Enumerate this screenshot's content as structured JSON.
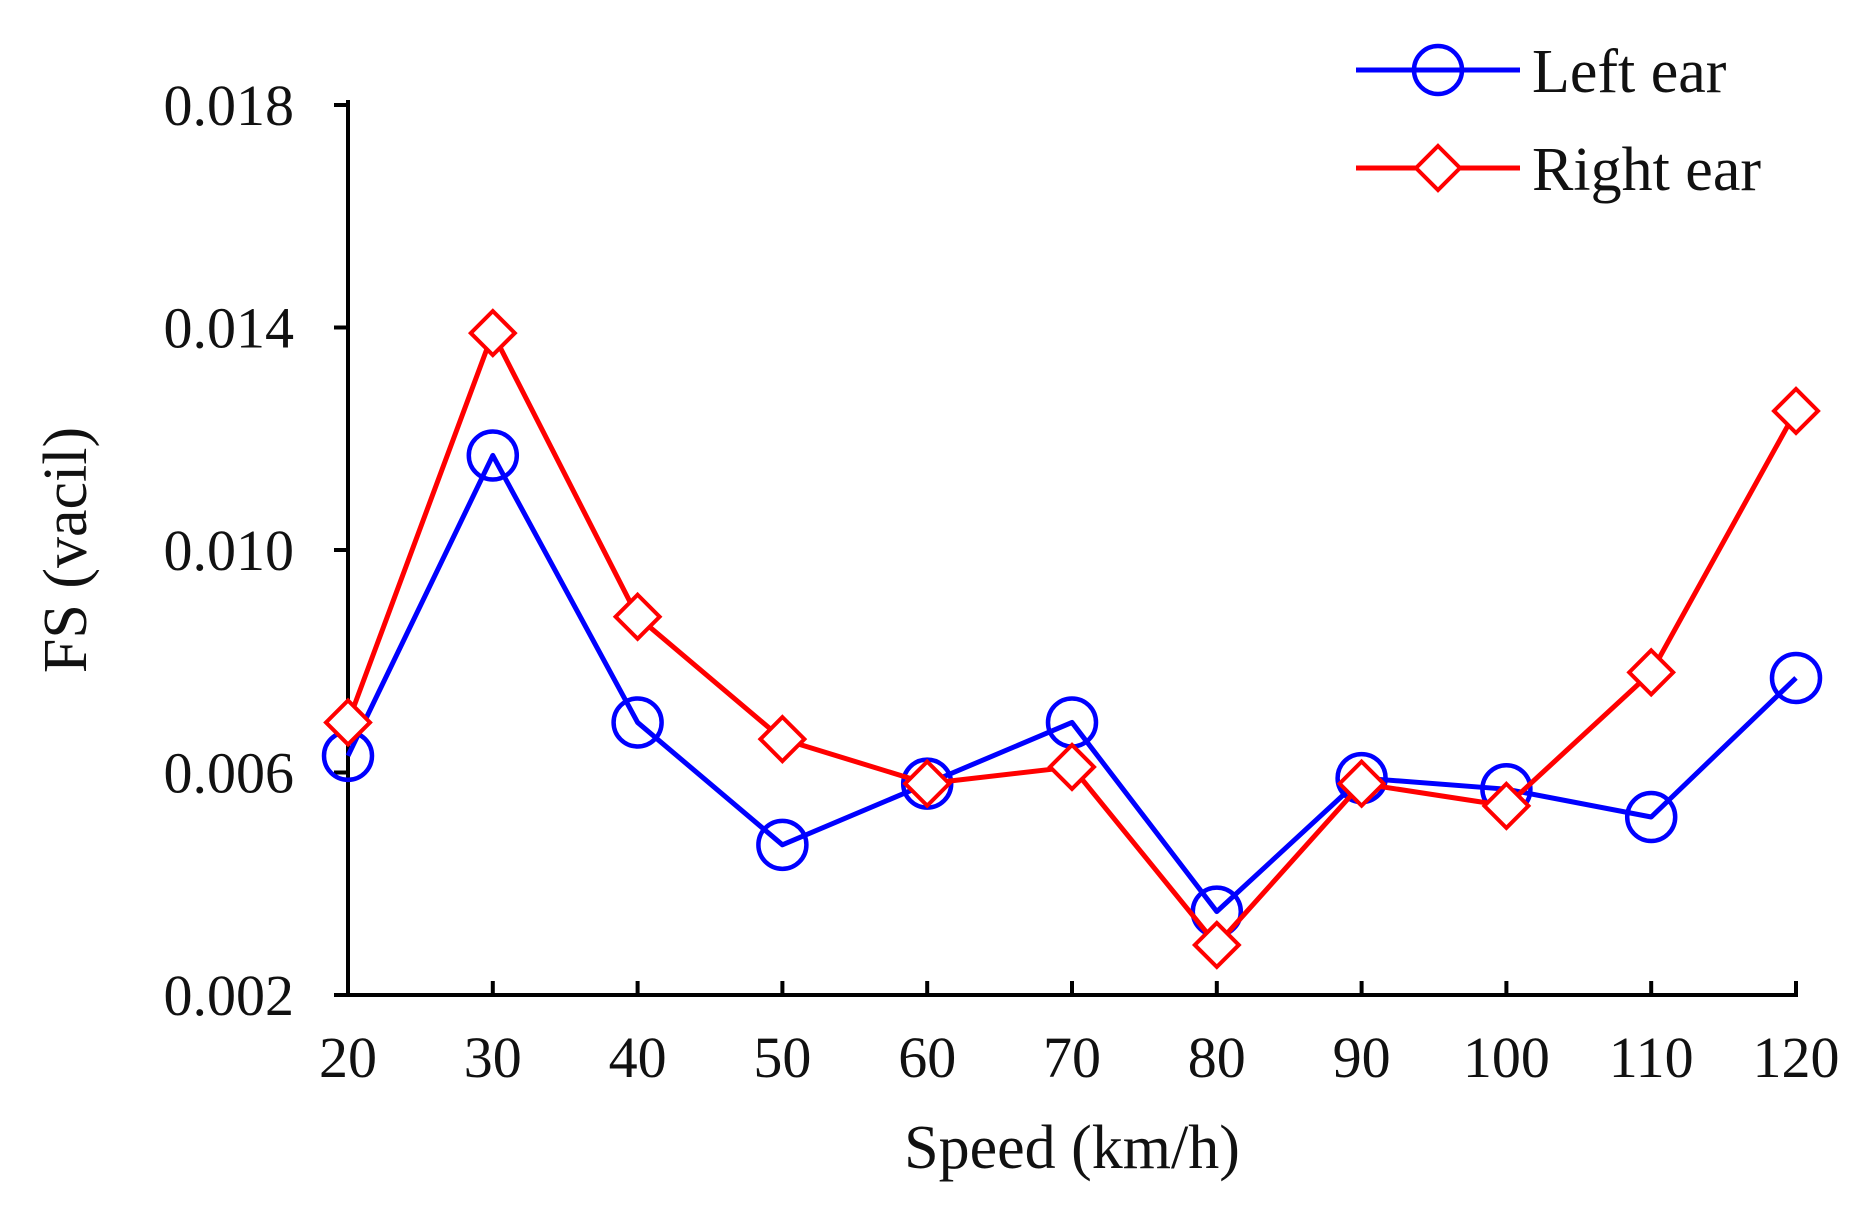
{
  "chart_data": {
    "type": "line",
    "title": "",
    "xlabel": "Speed (km/h)",
    "ylabel": "FS (vacil)",
    "categories": [
      "20",
      "30",
      "40",
      "50",
      "60",
      "70",
      "80",
      "90",
      "100",
      "110",
      "120"
    ],
    "x": [
      20,
      30,
      40,
      50,
      60,
      70,
      80,
      90,
      100,
      110,
      120
    ],
    "ylim": [
      0.002,
      0.018
    ],
    "yticks": [
      "0.002",
      "0.006",
      "0.010",
      "0.014",
      "0.018"
    ],
    "ytick_values": [
      0.002,
      0.006,
      0.01,
      0.014,
      0.018
    ],
    "grid": false,
    "legend_position": "top-right",
    "series": [
      {
        "name": "Left ear",
        "color": "#0000ff",
        "marker": "circle",
        "values": [
          0.0063,
          0.0117,
          0.0069,
          0.0047,
          0.0058,
          0.0069,
          0.0035,
          0.0059,
          0.0057,
          0.0052,
          0.0077
        ]
      },
      {
        "name": "Right ear",
        "color": "#ff0000",
        "marker": "diamond",
        "values": [
          0.0069,
          0.0139,
          0.0088,
          0.0066,
          0.0058,
          0.0061,
          0.0029,
          0.0058,
          0.0054,
          0.0078,
          0.0125
        ]
      }
    ]
  }
}
